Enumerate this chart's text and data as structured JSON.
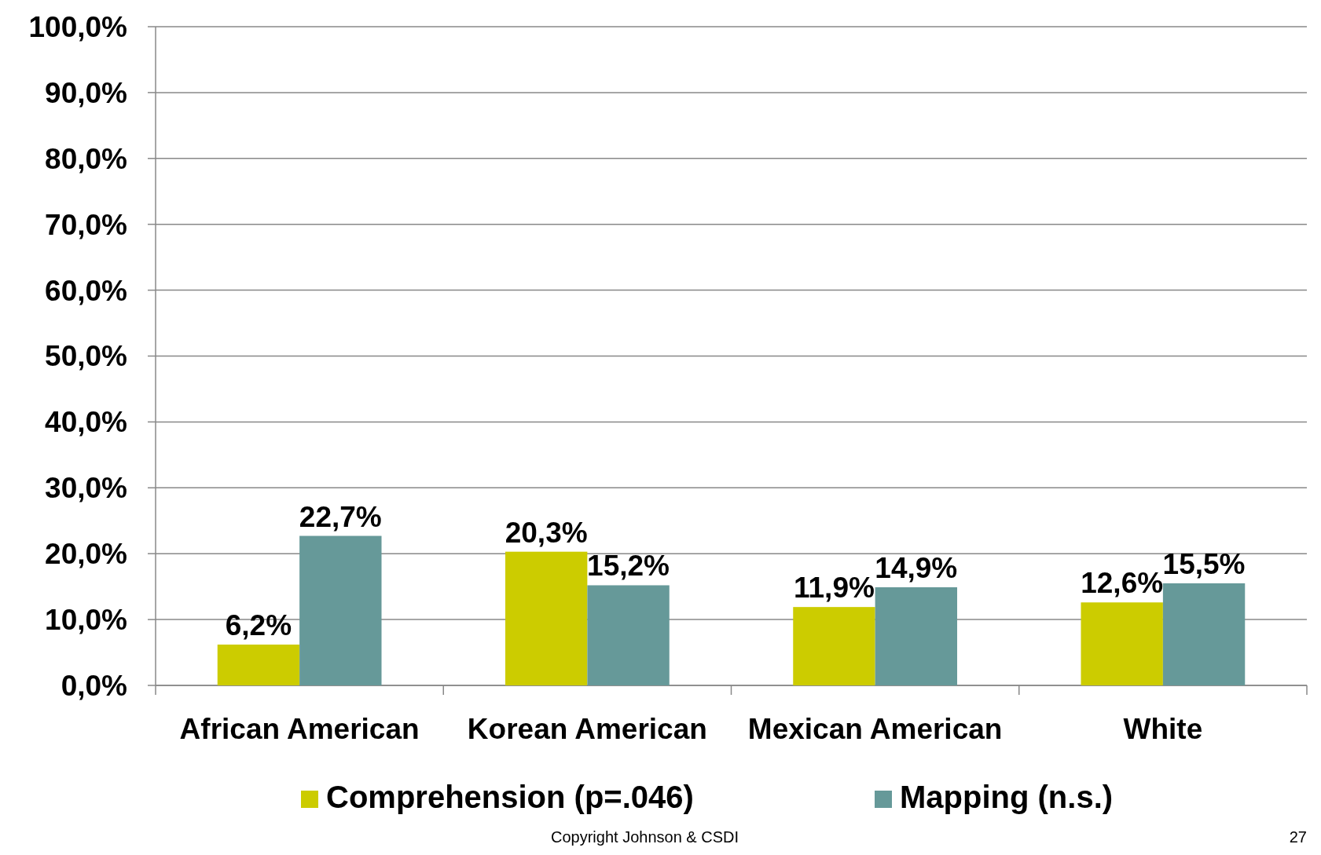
{
  "chart_data": {
    "type": "bar",
    "categories": [
      "African American",
      "Korean American",
      "Mexican American",
      "White"
    ],
    "series": [
      {
        "name": "Comprehension (p=.046)",
        "color": "#cccc00",
        "values": [
          6.2,
          20.3,
          11.9,
          12.6
        ],
        "value_labels": [
          "6,2%",
          "20,3%",
          "11,9%",
          "12,6%"
        ]
      },
      {
        "name": "Mapping (n.s.)",
        "color": "#669999",
        "values": [
          22.7,
          15.2,
          14.9,
          15.5
        ],
        "value_labels": [
          "22,7%",
          "15,2%",
          "14,9%",
          "15,5%"
        ]
      }
    ],
    "ylim": [
      0,
      100
    ],
    "yticks": [
      {
        "value": 0,
        "label": "0,0%"
      },
      {
        "value": 10,
        "label": "10,0%"
      },
      {
        "value": 20,
        "label": "20,0%"
      },
      {
        "value": 30,
        "label": "30,0%"
      },
      {
        "value": 40,
        "label": "40,0%"
      },
      {
        "value": 50,
        "label": "50,0%"
      },
      {
        "value": 60,
        "label": "60,0%"
      },
      {
        "value": 70,
        "label": "70,0%"
      },
      {
        "value": 80,
        "label": "80,0%"
      },
      {
        "value": 90,
        "label": "90,0%"
      },
      {
        "value": 100,
        "label": "100,0%"
      }
    ],
    "grid": "y",
    "legend": "bottom",
    "annotations": [
      "Copyright Johnson & CSDI",
      "27"
    ]
  }
}
